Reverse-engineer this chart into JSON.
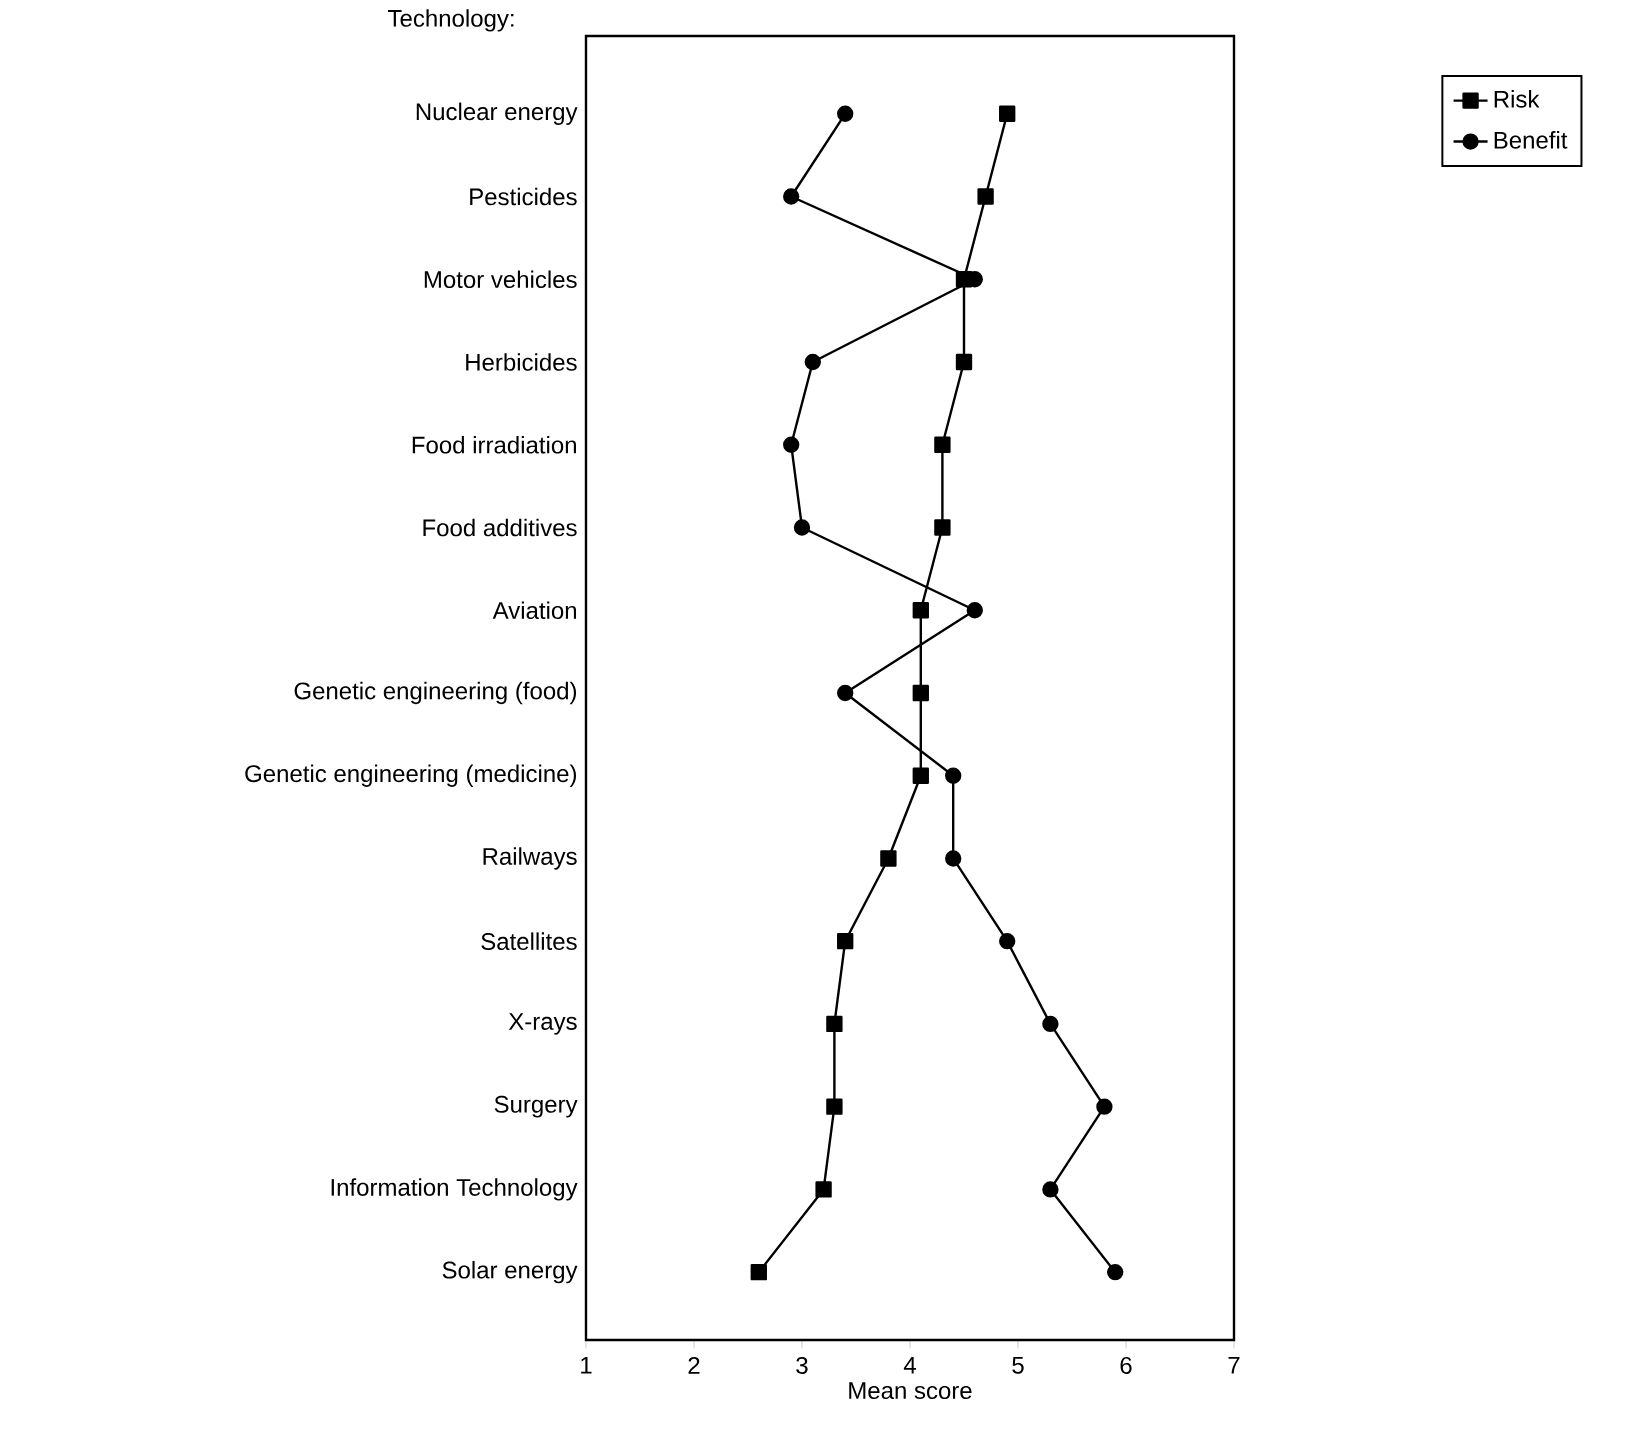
{
  "chart_data": {
    "type": "line",
    "orientation": "horizontal",
    "xlabel": "Mean score",
    "ylabel": "Technology:",
    "categories": [
      "Nuclear energy",
      "Pesticides",
      "Motor vehicles",
      "Herbicides",
      "Food irradiation",
      "Food additives",
      "Aviation",
      "Genetic engineering (food)",
      "Genetic engineering (medicine)",
      "Railways",
      "Satellites",
      "X-rays",
      "Surgery",
      "Information Technology",
      "Solar energy"
    ],
    "series": [
      {
        "name": "Risk",
        "color": "#000000",
        "marker": "square",
        "values": [
          4.9,
          4.7,
          4.5,
          4.5,
          4.3,
          4.3,
          4.1,
          4.1,
          4.1,
          3.8,
          3.4,
          3.3,
          3.3,
          3.2,
          2.6
        ]
      },
      {
        "name": "Benefit",
        "color": "#000000",
        "marker": "circle",
        "values": [
          3.4,
          2.9,
          4.6,
          3.1,
          2.9,
          3.0,
          4.6,
          3.4,
          4.4,
          4.4,
          4.9,
          5.3,
          5.8,
          5.3,
          5.9
        ]
      }
    ],
    "xlim": [
      1,
      7
    ],
    "xticks": [
      1,
      2,
      3,
      4,
      5,
      6,
      7
    ],
    "legend": "top right",
    "line_style": "solid",
    "grid": false
  }
}
